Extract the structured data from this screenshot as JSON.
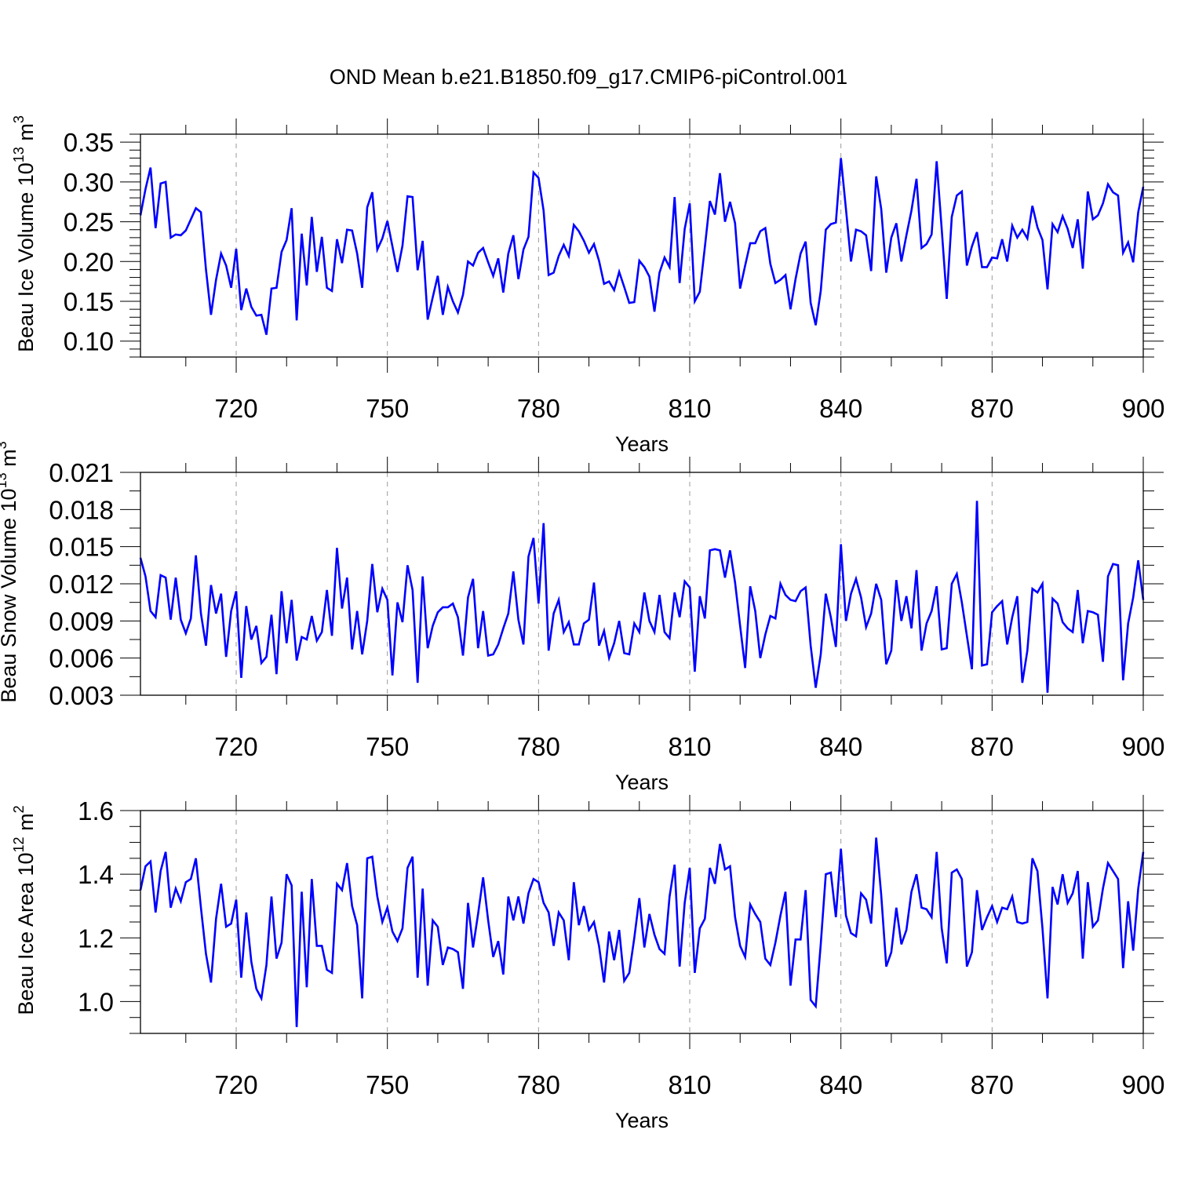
{
  "title": "OND Mean b.e21.B1850.f09_g17.CMIP6-piControl.001",
  "chart_data": [
    {
      "type": "line",
      "ylabel": "Beau Ice Volume 10",
      "ylabel_sup": "13",
      "ylabel_unit": " m",
      "ylabel_unit_sup": "3",
      "xlabel": "Years",
      "xlim": [
        701,
        900
      ],
      "ylim": [
        0.08,
        0.36
      ],
      "yticks": [
        0.1,
        0.15,
        0.2,
        0.25,
        0.3,
        0.35
      ],
      "ytick_labels": [
        "0.10",
        "0.15",
        "0.20",
        "0.25",
        "0.30",
        "0.35"
      ],
      "ytick_minor": 0.01,
      "xticks": [
        720,
        750,
        780,
        810,
        840,
        870,
        900
      ],
      "xtick_labels": [
        "720",
        "750",
        "780",
        "810",
        "840",
        "870",
        "900"
      ],
      "xtick_minor": 10,
      "vlines": [
        720,
        750,
        780,
        810,
        840,
        870
      ],
      "series": [
        {
          "name": "Beau Ice Volume",
          "color": "#0000ff",
          "start_year": 701,
          "values": [
            0.258,
            0.291,
            0.318,
            0.242,
            0.298,
            0.3,
            0.23,
            0.234,
            0.233,
            0.239,
            0.253,
            0.267,
            0.262,
            0.19,
            0.133,
            0.177,
            0.21,
            0.195,
            0.167,
            0.216,
            0.139,
            0.166,
            0.143,
            0.132,
            0.133,
            0.108,
            0.166,
            0.167,
            0.212,
            0.227,
            0.267,
            0.126,
            0.235,
            0.17,
            0.256,
            0.187,
            0.231,
            0.167,
            0.163,
            0.228,
            0.198,
            0.24,
            0.239,
            0.21,
            0.167,
            0.268,
            0.287,
            0.215,
            0.229,
            0.251,
            0.219,
            0.187,
            0.22,
            0.282,
            0.281,
            0.189,
            0.226,
            0.127,
            0.155,
            0.182,
            0.133,
            0.168,
            0.15,
            0.136,
            0.158,
            0.2,
            0.195,
            0.211,
            0.217,
            0.199,
            0.182,
            0.204,
            0.161,
            0.21,
            0.233,
            0.178,
            0.215,
            0.231,
            0.312,
            0.305,
            0.264,
            0.183,
            0.186,
            0.207,
            0.221,
            0.207,
            0.246,
            0.238,
            0.226,
            0.211,
            0.222,
            0.201,
            0.172,
            0.175,
            0.164,
            0.187,
            0.168,
            0.148,
            0.149,
            0.201,
            0.193,
            0.181,
            0.137,
            0.186,
            0.205,
            0.193,
            0.281,
            0.173,
            0.241,
            0.273,
            0.15,
            0.162,
            0.218,
            0.276,
            0.259,
            0.311,
            0.25,
            0.275,
            0.248,
            0.166,
            0.195,
            0.223,
            0.223,
            0.238,
            0.242,
            0.197,
            0.173,
            0.177,
            0.183,
            0.14,
            0.178,
            0.21,
            0.225,
            0.148,
            0.12,
            0.163,
            0.24,
            0.247,
            0.249,
            0.33,
            0.266,
            0.2,
            0.24,
            0.238,
            0.233,
            0.188,
            0.307,
            0.266,
            0.186,
            0.23,
            0.248,
            0.2,
            0.233,
            0.264,
            0.304,
            0.217,
            0.222,
            0.234,
            0.326,
            0.241,
            0.153,
            0.256,
            0.283,
            0.288,
            0.195,
            0.219,
            0.237,
            0.193,
            0.193,
            0.205,
            0.204,
            0.228,
            0.2,
            0.245,
            0.23,
            0.24,
            0.229,
            0.27,
            0.243,
            0.227,
            0.165,
            0.247,
            0.237,
            0.257,
            0.241,
            0.217,
            0.253,
            0.191,
            0.288,
            0.253,
            0.258,
            0.273,
            0.297,
            0.287,
            0.283,
            0.211,
            0.224,
            0.199,
            0.262,
            0.294
          ]
        }
      ]
    },
    {
      "type": "line",
      "ylabel": "Beau Snow Volume 10",
      "ylabel_sup": "13",
      "ylabel_unit": " m",
      "ylabel_unit_sup": "3",
      "xlabel": "Years",
      "xlim": [
        701,
        900
      ],
      "ylim": [
        0.003,
        0.021
      ],
      "yticks": [
        0.003,
        0.006,
        0.009,
        0.012,
        0.015,
        0.018,
        0.021
      ],
      "ytick_labels": [
        "0.003",
        "0.006",
        "0.009",
        "0.012",
        "0.015",
        "0.018",
        "0.021"
      ],
      "ytick_minor": 0.0015,
      "xticks": [
        720,
        750,
        780,
        810,
        840,
        870,
        900
      ],
      "xtick_labels": [
        "720",
        "750",
        "780",
        "810",
        "840",
        "870",
        "900"
      ],
      "xtick_minor": 10,
      "vlines": [
        720,
        750,
        780,
        810,
        840,
        870
      ],
      "series": [
        {
          "name": "Beau Snow Volume",
          "color": "#0000ff",
          "start_year": 701,
          "values": [
            0.0141,
            0.0126,
            0.0098,
            0.0093,
            0.0127,
            0.0125,
            0.0091,
            0.0125,
            0.0091,
            0.008,
            0.0092,
            0.0143,
            0.0096,
            0.007,
            0.0119,
            0.0096,
            0.0112,
            0.0061,
            0.0098,
            0.0114,
            0.0044,
            0.0102,
            0.0075,
            0.0086,
            0.0056,
            0.0061,
            0.0095,
            0.0047,
            0.0114,
            0.0072,
            0.0107,
            0.0058,
            0.0077,
            0.0075,
            0.0094,
            0.0074,
            0.0081,
            0.0115,
            0.0078,
            0.0149,
            0.01,
            0.0125,
            0.0067,
            0.0098,
            0.0063,
            0.009,
            0.0136,
            0.0097,
            0.0116,
            0.0107,
            0.0046,
            0.0105,
            0.0089,
            0.0135,
            0.0115,
            0.004,
            0.0126,
            0.0068,
            0.0086,
            0.0097,
            0.0101,
            0.0101,
            0.0104,
            0.0093,
            0.0062,
            0.0109,
            0.0124,
            0.0068,
            0.0098,
            0.0062,
            0.0063,
            0.0071,
            0.0084,
            0.0096,
            0.013,
            0.0091,
            0.0071,
            0.0142,
            0.0157,
            0.0104,
            0.0169,
            0.0066,
            0.0096,
            0.0107,
            0.0081,
            0.0089,
            0.0071,
            0.0071,
            0.0088,
            0.0091,
            0.0121,
            0.007,
            0.0082,
            0.006,
            0.0072,
            0.009,
            0.0064,
            0.0063,
            0.0088,
            0.0081,
            0.0113,
            0.009,
            0.0081,
            0.0111,
            0.0081,
            0.0076,
            0.0113,
            0.0093,
            0.0122,
            0.0117,
            0.0049,
            0.011,
            0.0092,
            0.0147,
            0.0148,
            0.0147,
            0.0125,
            0.0147,
            0.0121,
            0.0086,
            0.0052,
            0.0118,
            0.0098,
            0.006,
            0.0079,
            0.0094,
            0.0092,
            0.012,
            0.0111,
            0.0107,
            0.0106,
            0.0114,
            0.0117,
            0.007,
            0.0036,
            0.0063,
            0.0112,
            0.0093,
            0.0069,
            0.0152,
            0.009,
            0.0112,
            0.0124,
            0.0109,
            0.0085,
            0.0096,
            0.012,
            0.0107,
            0.0055,
            0.0066,
            0.0123,
            0.009,
            0.011,
            0.0084,
            0.0131,
            0.0066,
            0.0088,
            0.0098,
            0.0118,
            0.0067,
            0.0068,
            0.012,
            0.0128,
            0.0105,
            0.0078,
            0.0051,
            0.0187,
            0.0054,
            0.0055,
            0.0097,
            0.0102,
            0.0106,
            0.0071,
            0.0093,
            0.011,
            0.004,
            0.0066,
            0.0116,
            0.0113,
            0.012,
            0.0032,
            0.0108,
            0.0104,
            0.0089,
            0.0084,
            0.0081,
            0.0115,
            0.0072,
            0.0098,
            0.0097,
            0.0095,
            0.0057,
            0.0126,
            0.0136,
            0.0135,
            0.0042,
            0.0088,
            0.0109,
            0.0139,
            0.0107
          ]
        }
      ]
    },
    {
      "type": "line",
      "ylabel": "Beau Ice Area 10",
      "ylabel_sup": "12",
      "ylabel_unit": " m",
      "ylabel_unit_sup": "2",
      "xlabel": "Years",
      "xlim": [
        701,
        900
      ],
      "ylim": [
        0.9,
        1.6
      ],
      "yticks": [
        1.0,
        1.2,
        1.4,
        1.6
      ],
      "ytick_labels": [
        "1.0",
        "1.2",
        "1.4",
        "1.6"
      ],
      "ytick_minor": 0.05,
      "xticks": [
        720,
        750,
        780,
        810,
        840,
        870,
        900
      ],
      "xtick_labels": [
        "720",
        "750",
        "780",
        "810",
        "840",
        "870",
        "900"
      ],
      "xtick_minor": 10,
      "vlines": [
        720,
        750,
        780,
        810,
        840,
        870
      ],
      "series": [
        {
          "name": "Beau Ice Area",
          "color": "#0000ff",
          "start_year": 701,
          "values": [
            1.35,
            1.425,
            1.44,
            1.28,
            1.41,
            1.47,
            1.295,
            1.355,
            1.315,
            1.375,
            1.385,
            1.45,
            1.295,
            1.15,
            1.06,
            1.26,
            1.37,
            1.235,
            1.245,
            1.32,
            1.075,
            1.28,
            1.125,
            1.04,
            1.01,
            1.115,
            1.33,
            1.135,
            1.185,
            1.4,
            1.365,
            0.92,
            1.345,
            1.045,
            1.385,
            1.175,
            1.175,
            1.1,
            1.09,
            1.37,
            1.35,
            1.435,
            1.3,
            1.24,
            1.01,
            1.45,
            1.455,
            1.33,
            1.25,
            1.295,
            1.22,
            1.19,
            1.23,
            1.42,
            1.455,
            1.075,
            1.355,
            1.05,
            1.255,
            1.235,
            1.115,
            1.17,
            1.165,
            1.155,
            1.04,
            1.31,
            1.17,
            1.275,
            1.39,
            1.255,
            1.14,
            1.19,
            1.085,
            1.33,
            1.255,
            1.33,
            1.245,
            1.34,
            1.385,
            1.375,
            1.31,
            1.28,
            1.175,
            1.28,
            1.255,
            1.13,
            1.375,
            1.24,
            1.3,
            1.225,
            1.25,
            1.175,
            1.06,
            1.22,
            1.13,
            1.225,
            1.065,
            1.09,
            1.2,
            1.325,
            1.17,
            1.275,
            1.21,
            1.165,
            1.15,
            1.33,
            1.43,
            1.11,
            1.31,
            1.42,
            1.09,
            1.23,
            1.26,
            1.42,
            1.37,
            1.495,
            1.415,
            1.425,
            1.265,
            1.175,
            1.14,
            1.305,
            1.275,
            1.25,
            1.135,
            1.115,
            1.185,
            1.27,
            1.345,
            1.05,
            1.195,
            1.195,
            1.35,
            1.005,
            0.985,
            1.18,
            1.4,
            1.405,
            1.265,
            1.48,
            1.27,
            1.215,
            1.205,
            1.34,
            1.32,
            1.245,
            1.515,
            1.335,
            1.11,
            1.155,
            1.295,
            1.18,
            1.225,
            1.345,
            1.4,
            1.295,
            1.29,
            1.265,
            1.47,
            1.23,
            1.12,
            1.405,
            1.415,
            1.385,
            1.11,
            1.155,
            1.35,
            1.225,
            1.265,
            1.3,
            1.25,
            1.295,
            1.29,
            1.33,
            1.25,
            1.245,
            1.25,
            1.45,
            1.41,
            1.23,
            1.01,
            1.36,
            1.305,
            1.4,
            1.31,
            1.34,
            1.41,
            1.135,
            1.375,
            1.235,
            1.255,
            1.355,
            1.435,
            1.41,
            1.385,
            1.105,
            1.315,
            1.16,
            1.355,
            1.47
          ]
        }
      ]
    }
  ]
}
